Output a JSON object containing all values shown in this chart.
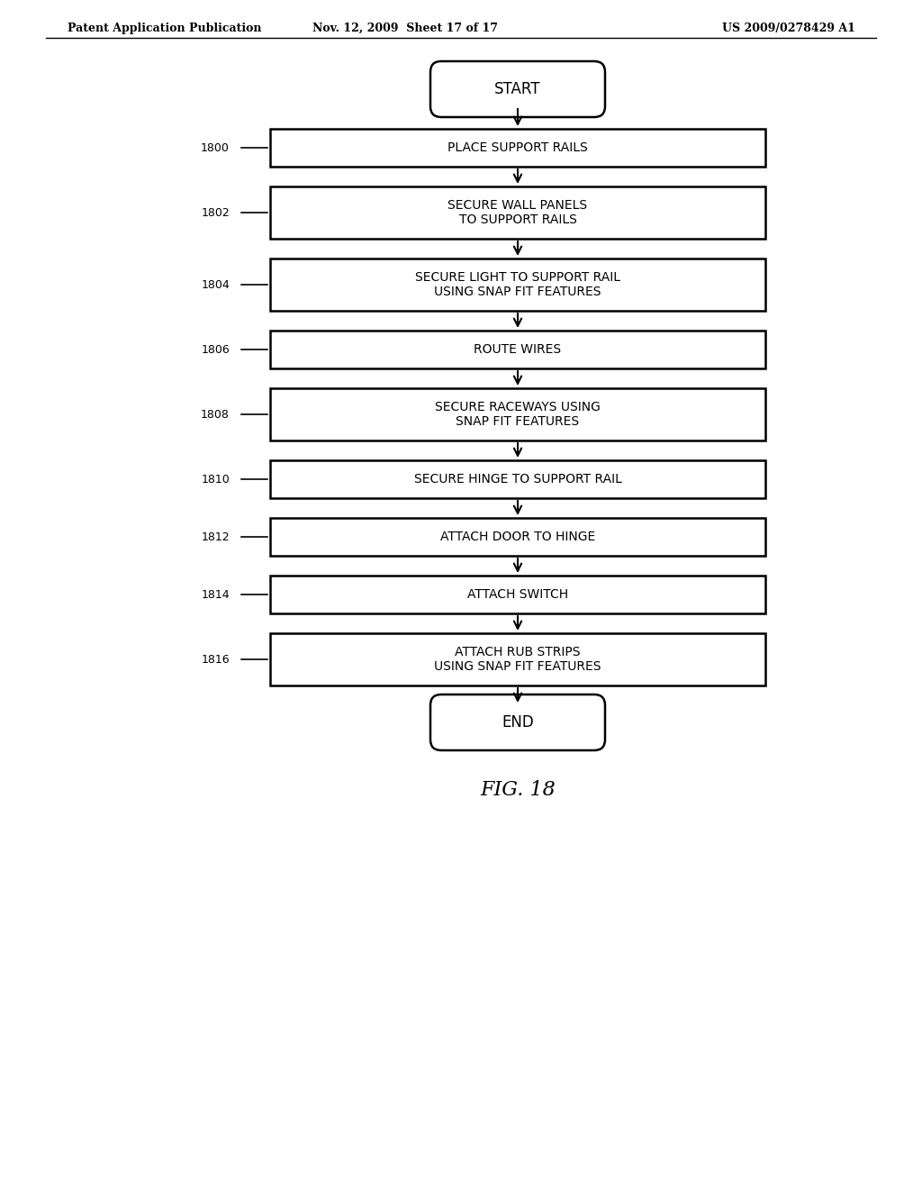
{
  "header_left": "Patent Application Publication",
  "header_mid": "Nov. 12, 2009  Sheet 17 of 17",
  "header_right": "US 2009/0278429 A1",
  "figure_label": "FIG. 18",
  "background_color": "#ffffff",
  "steps": [
    {
      "id": "START",
      "label": "START",
      "type": "terminal",
      "ref": null
    },
    {
      "id": "1800",
      "label": "PLACE SUPPORT RAILS",
      "type": "process",
      "ref": "1800"
    },
    {
      "id": "1802",
      "label": "SECURE WALL PANELS\nTO SUPPORT RAILS",
      "type": "process",
      "ref": "1802"
    },
    {
      "id": "1804",
      "label": "SECURE LIGHT TO SUPPORT RAIL\nUSING SNAP FIT FEATURES",
      "type": "process",
      "ref": "1804"
    },
    {
      "id": "1806",
      "label": "ROUTE WIRES",
      "type": "process",
      "ref": "1806"
    },
    {
      "id": "1808",
      "label": "SECURE RACEWAYS USING\nSNAP FIT FEATURES",
      "type": "process",
      "ref": "1808"
    },
    {
      "id": "1810",
      "label": "SECURE HINGE TO SUPPORT RAIL",
      "type": "process",
      "ref": "1810"
    },
    {
      "id": "1812",
      "label": "ATTACH DOOR TO HINGE",
      "type": "process",
      "ref": "1812"
    },
    {
      "id": "1814",
      "label": "ATTACH SWITCH",
      "type": "process",
      "ref": "1814"
    },
    {
      "id": "1816",
      "label": "ATTACH RUB STRIPS\nUSING SNAP FIT FEATURES",
      "type": "process",
      "ref": "1816"
    },
    {
      "id": "END",
      "label": "END",
      "type": "terminal",
      "ref": null
    }
  ]
}
